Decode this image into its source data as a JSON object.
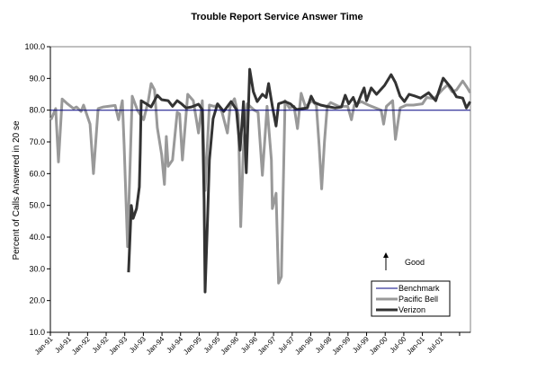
{
  "chart_data": {
    "type": "line",
    "title": "Trouble Report Service Answer Time",
    "xlabel": "",
    "ylabel": "Percent of Calls Answered in 20 se",
    "ylim": [
      10,
      100
    ],
    "yticks": [
      "10.0",
      "20.0",
      "30.0",
      "40.0",
      "50.0",
      "60.0",
      "70.0",
      "80.0",
      "90.0",
      "100.0"
    ],
    "x_unit": "months since Jan-91",
    "xlim": [
      0,
      135.5
    ],
    "xtick_step_months": 6,
    "xtick_labels": [
      "Jan-91",
      "Jul-91",
      "Jan-92",
      "Jul-92",
      "Jan-93",
      "Jul-93",
      "Jan-94",
      "Jul-94",
      "Jan-95",
      "Jul-95",
      "Jan-96",
      "Jul-96",
      "Jan-97",
      "Jul-97",
      "Jan-98",
      "Jul-98",
      "Jan-99",
      "Jul-99",
      "Jan-00",
      "Jul-00",
      "Jan-01",
      "Jul-01"
    ],
    "grid": false,
    "legend_position": "bottom-right",
    "annotation": {
      "text": "Good",
      "arrow": "up"
    },
    "series": [
      {
        "name": "Benchmark",
        "color": "#000080",
        "width": 1,
        "points": [
          [
            0,
            80
          ],
          [
            135.4,
            80
          ]
        ]
      },
      {
        "name": "Pacific Bell",
        "color": "#999999",
        "width": 3,
        "points": [
          [
            0.2,
            77
          ],
          [
            1.7,
            80.5
          ],
          [
            2.6,
            63.7
          ],
          [
            3.8,
            83.5
          ],
          [
            5.5,
            82
          ],
          [
            7.5,
            80.5
          ],
          [
            8.4,
            81
          ],
          [
            9.9,
            79.6
          ],
          [
            10.7,
            81.6
          ],
          [
            12.8,
            75.6
          ],
          [
            13.9,
            60
          ],
          [
            15.4,
            80.5
          ],
          [
            17.1,
            81
          ],
          [
            20.9,
            81.5
          ],
          [
            22.0,
            77
          ],
          [
            23.2,
            83
          ],
          [
            23.8,
            69
          ],
          [
            24.9,
            37
          ],
          [
            26.4,
            84.4
          ],
          [
            28.1,
            80
          ],
          [
            30.1,
            77
          ],
          [
            31.6,
            83
          ],
          [
            32.5,
            88.4
          ],
          [
            33.6,
            86.4
          ],
          [
            34.5,
            74.5
          ],
          [
            35.9,
            66
          ],
          [
            36.8,
            56.6
          ],
          [
            37.4,
            71.7
          ],
          [
            38.0,
            62.3
          ],
          [
            39.4,
            64.3
          ],
          [
            40.9,
            79.3
          ],
          [
            41.7,
            78.8
          ],
          [
            42.6,
            64.3
          ],
          [
            44.3,
            85
          ],
          [
            46.1,
            83
          ],
          [
            47.8,
            72.8
          ],
          [
            49.0,
            83
          ],
          [
            49.9,
            54.7
          ],
          [
            51.3,
            81.6
          ],
          [
            52.8,
            81.2
          ],
          [
            54.2,
            81.6
          ],
          [
            55.4,
            79.3
          ],
          [
            57.1,
            72.8
          ],
          [
            58.0,
            81.2
          ],
          [
            59.4,
            83.6
          ],
          [
            60.6,
            78.5
          ],
          [
            61.4,
            43.3
          ],
          [
            62.3,
            68.8
          ],
          [
            63.5,
            82
          ],
          [
            65.8,
            80
          ],
          [
            67.0,
            79.3
          ],
          [
            68.4,
            59.5
          ],
          [
            69.9,
            81.2
          ],
          [
            71.3,
            64.3
          ],
          [
            71.6,
            49
          ],
          [
            72.8,
            53.8
          ],
          [
            73.6,
            25.5
          ],
          [
            74.5,
            27.5
          ],
          [
            75.7,
            83
          ],
          [
            77.1,
            80.7
          ],
          [
            78.6,
            81.2
          ],
          [
            79.7,
            74.2
          ],
          [
            80.9,
            85.3
          ],
          [
            82.3,
            81
          ],
          [
            84.3,
            83
          ],
          [
            85.8,
            81.6
          ],
          [
            86.7,
            68.8
          ],
          [
            87.5,
            55.2
          ],
          [
            88.4,
            70
          ],
          [
            89.3,
            81.2
          ],
          [
            90.4,
            82.4
          ],
          [
            93.0,
            81.2
          ],
          [
            95.9,
            81.2
          ],
          [
            97.1,
            77
          ],
          [
            98.0,
            81.6
          ],
          [
            100.3,
            82.7
          ],
          [
            102.6,
            81.6
          ],
          [
            104.9,
            80.7
          ],
          [
            106.7,
            80
          ],
          [
            107.5,
            75.6
          ],
          [
            108.4,
            81.2
          ],
          [
            110.4,
            83
          ],
          [
            111.3,
            70.8
          ],
          [
            112.8,
            80.7
          ],
          [
            114.8,
            81.6
          ],
          [
            117.1,
            81.6
          ],
          [
            120.0,
            82
          ],
          [
            121.4,
            84
          ],
          [
            123.8,
            83.6
          ],
          [
            126.4,
            86.4
          ],
          [
            128.1,
            88
          ],
          [
            129.6,
            85.8
          ],
          [
            131.0,
            86.4
          ],
          [
            133.0,
            89.2
          ],
          [
            134.5,
            87
          ],
          [
            135.4,
            85.5
          ]
        ]
      },
      {
        "name": "Verizon",
        "color": "#333333",
        "width": 3,
        "points": [
          [
            25.2,
            28.9
          ],
          [
            26.1,
            50
          ],
          [
            26.7,
            45.9
          ],
          [
            27.8,
            49
          ],
          [
            28.7,
            55.8
          ],
          [
            29.0,
            67
          ],
          [
            29.3,
            83
          ],
          [
            31.0,
            82
          ],
          [
            32.5,
            81
          ],
          [
            34.5,
            84.7
          ],
          [
            35.9,
            83.3
          ],
          [
            38.0,
            83
          ],
          [
            39.4,
            81.2
          ],
          [
            40.9,
            83
          ],
          [
            42.3,
            82
          ],
          [
            43.8,
            80.7
          ],
          [
            45.5,
            81
          ],
          [
            47.8,
            81.9
          ],
          [
            49.0,
            80.2
          ],
          [
            49.6,
            51.8
          ],
          [
            49.9,
            22.7
          ],
          [
            50.7,
            45.3
          ],
          [
            51.3,
            64.3
          ],
          [
            52.5,
            77.3
          ],
          [
            53.9,
            82
          ],
          [
            55.9,
            79.6
          ],
          [
            58.3,
            82.7
          ],
          [
            60.0,
            80.2
          ],
          [
            61.2,
            67.4
          ],
          [
            62.3,
            82.7
          ],
          [
            63.2,
            60.3
          ],
          [
            64.3,
            92.9
          ],
          [
            65.5,
            85.8
          ],
          [
            66.7,
            82.7
          ],
          [
            68.4,
            85
          ],
          [
            69.6,
            84
          ],
          [
            70.4,
            88.4
          ],
          [
            71.6,
            81.2
          ],
          [
            72.8,
            75
          ],
          [
            73.6,
            82
          ],
          [
            75.7,
            82.7
          ],
          [
            77.4,
            82
          ],
          [
            79.4,
            80.2
          ],
          [
            81.4,
            80.5
          ],
          [
            82.9,
            80.7
          ],
          [
            84.1,
            84.4
          ],
          [
            85.2,
            82.4
          ],
          [
            87.2,
            81.6
          ],
          [
            89.0,
            81.2
          ],
          [
            91.9,
            80.7
          ],
          [
            93.9,
            81
          ],
          [
            95.1,
            84.7
          ],
          [
            96.2,
            82
          ],
          [
            97.7,
            84
          ],
          [
            98.8,
            81.2
          ],
          [
            100.3,
            85
          ],
          [
            101.2,
            87
          ],
          [
            102.0,
            83
          ],
          [
            103.5,
            87
          ],
          [
            105.2,
            85
          ],
          [
            107.8,
            87.8
          ],
          [
            109.9,
            91.2
          ],
          [
            111.3,
            88.7
          ],
          [
            112.8,
            84.4
          ],
          [
            114.2,
            82.7
          ],
          [
            115.7,
            85
          ],
          [
            117.7,
            84.4
          ],
          [
            119.4,
            83.8
          ],
          [
            122.0,
            85.5
          ],
          [
            124.3,
            83
          ],
          [
            126.7,
            90.1
          ],
          [
            129.3,
            87
          ],
          [
            131.0,
            84.2
          ],
          [
            133.0,
            83.8
          ],
          [
            134.2,
            80.7
          ],
          [
            135.4,
            82.7
          ]
        ]
      }
    ]
  }
}
